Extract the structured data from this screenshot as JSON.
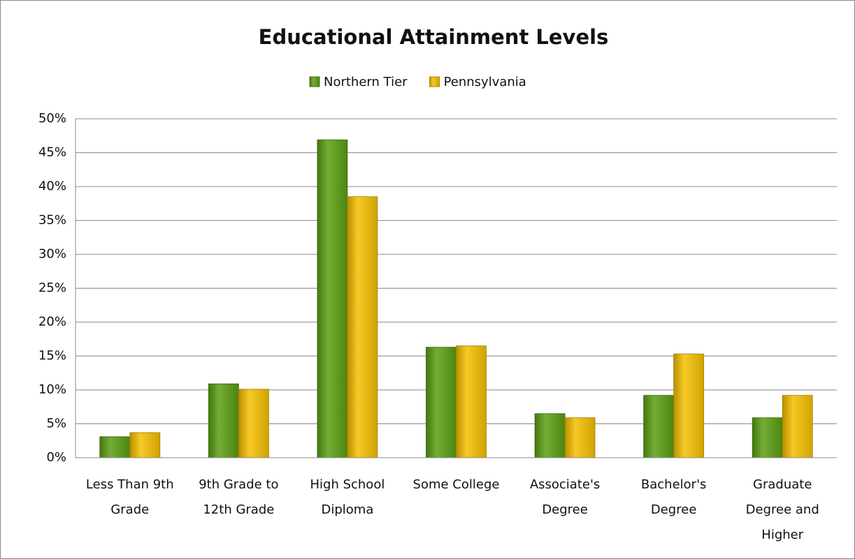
{
  "chart_data": {
    "type": "bar",
    "title": "Educational Attainment Levels",
    "categories": [
      "Less Than 9th Grade",
      "9th Grade to 12th Grade",
      "High School Diploma",
      "Some College",
      "Associate's Degree",
      "Bachelor's Degree",
      "Graduate Degree and Higher"
    ],
    "series": [
      {
        "name": "Northern Tier",
        "color": "#5a9e12",
        "values": [
          3.1,
          10.9,
          46.9,
          16.3,
          6.5,
          9.2,
          5.9
        ]
      },
      {
        "name": "Pennsylvania",
        "color": "#f5c000",
        "values": [
          3.7,
          10.1,
          38.5,
          16.5,
          5.9,
          15.3,
          9.2
        ]
      }
    ],
    "ylim": [
      0,
      50
    ],
    "yticks": [
      {
        "value": 0,
        "label": "0%"
      },
      {
        "value": 5,
        "label": "5%"
      },
      {
        "value": 10,
        "label": "10%"
      },
      {
        "value": 15,
        "label": "15%"
      },
      {
        "value": 20,
        "label": "20%"
      },
      {
        "value": 25,
        "label": "25%"
      },
      {
        "value": 30,
        "label": "30%"
      },
      {
        "value": 35,
        "label": "35%"
      },
      {
        "value": 40,
        "label": "40%"
      },
      {
        "value": 45,
        "label": "45%"
      },
      {
        "value": 50,
        "label": "50%"
      }
    ],
    "grid": true,
    "legend": "top"
  }
}
